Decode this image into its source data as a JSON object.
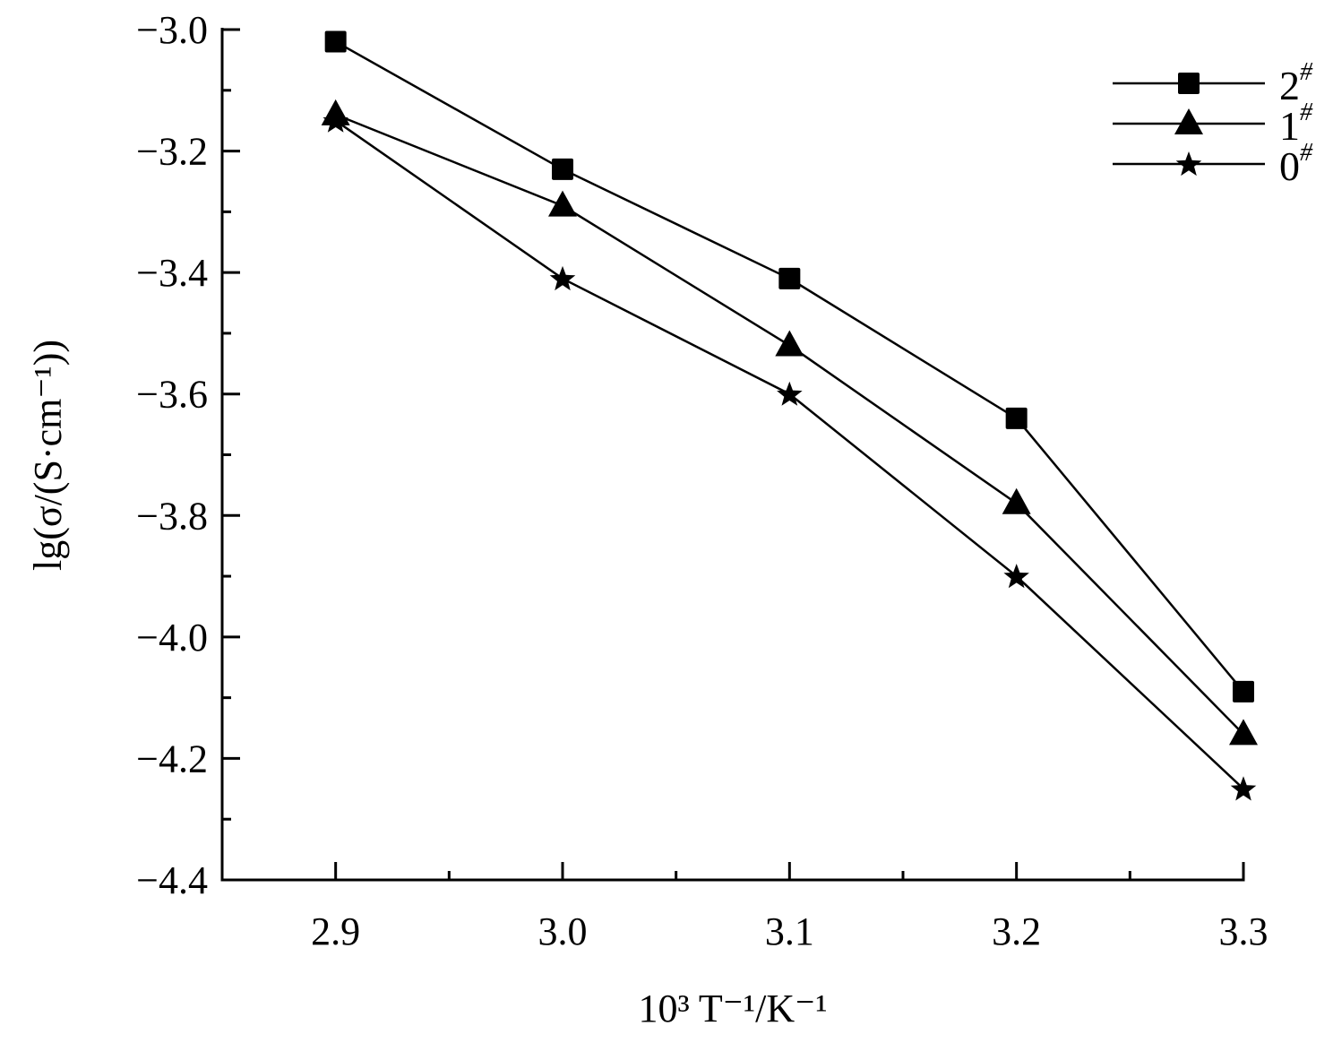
{
  "chart_data": {
    "type": "line",
    "title": "",
    "xlabel": "10³ T⁻¹/K⁻¹",
    "ylabel": "lg(σ/(S·cm⁻¹))",
    "xlim": [
      2.85,
      3.3
    ],
    "ylim": [
      -4.4,
      -3.0
    ],
    "x_ticks": [
      2.9,
      3.0,
      3.1,
      3.2,
      3.3
    ],
    "x_tick_labels": [
      "2.9",
      "3.0",
      "3.1",
      "3.2",
      "3.3"
    ],
    "x_minor_ticks": [
      2.95,
      3.05,
      3.15,
      3.25
    ],
    "y_ticks": [
      -3.0,
      -3.2,
      -3.4,
      -3.6,
      -3.8,
      -4.0,
      -4.2,
      -4.4
    ],
    "y_tick_labels": [
      "−3.0",
      "−3.2",
      "−3.4",
      "−3.6",
      "−3.8",
      "−4.0",
      "−4.2",
      "−4.4"
    ],
    "y_minor_ticks": [
      -3.1,
      -3.3,
      -3.5,
      -3.7,
      -3.9,
      -4.1,
      -4.3
    ],
    "grid": false,
    "legend_position": "top-right",
    "x": [
      2.9,
      3.0,
      3.1,
      3.2,
      3.3
    ],
    "series": [
      {
        "name": "2",
        "sup": "#",
        "marker": "square",
        "values": [
          -3.02,
          -3.23,
          -3.41,
          -3.64,
          -4.09
        ]
      },
      {
        "name": "1",
        "sup": "#",
        "marker": "triangle",
        "values": [
          -3.14,
          -3.29,
          -3.52,
          -3.78,
          -4.16
        ]
      },
      {
        "name": "0",
        "sup": "#",
        "marker": "star",
        "values": [
          -3.15,
          -3.41,
          -3.6,
          -3.9,
          -4.25
        ]
      }
    ],
    "colors": {
      "line": "#000000",
      "marker": "#000000"
    }
  }
}
